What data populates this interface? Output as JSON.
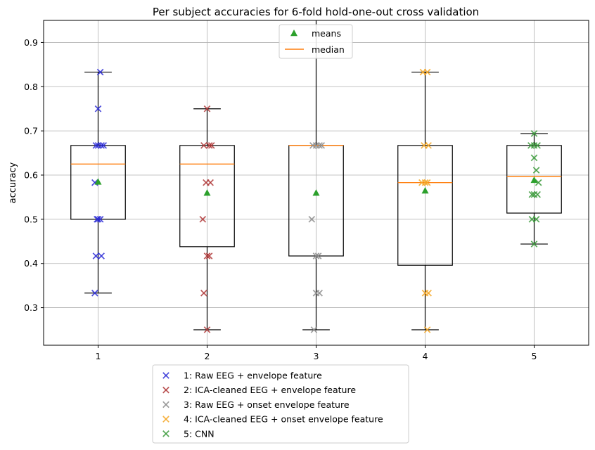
{
  "chart_data": {
    "type": "box",
    "title": "Per subject accuracies for 6-fold hold-one-out cross validation",
    "xlabel": "",
    "ylabel": "accuracy",
    "ylim": [
      0.215,
      0.95
    ],
    "xlim": [
      0.5,
      5.5
    ],
    "yticks": [
      0.3,
      0.4,
      0.5,
      0.6,
      0.7,
      0.8,
      0.9
    ],
    "ytick_labels": [
      "0.3",
      "0.4",
      "0.5",
      "0.6",
      "0.7",
      "0.8",
      "0.9"
    ],
    "categories": [
      "1",
      "2",
      "3",
      "4",
      "5"
    ],
    "grid": true,
    "top_legend": {
      "placement": "top-center",
      "entries": [
        {
          "label": "means",
          "marker": "triangle",
          "color": "#2ca02c"
        },
        {
          "label": "median",
          "marker": "line",
          "color": "#ff7f0e"
        }
      ]
    },
    "boxes": [
      {
        "q1": 0.5,
        "median": 0.625,
        "q3": 0.667,
        "whislo": 0.333,
        "whishi": 0.833,
        "mean": 0.585
      },
      {
        "q1": 0.438,
        "median": 0.625,
        "q3": 0.667,
        "whislo": 0.25,
        "whishi": 0.75,
        "mean": 0.56
      },
      {
        "q1": 0.417,
        "median": 0.667,
        "q3": 0.667,
        "whislo": 0.25,
        "whishi": 0.95,
        "mean": 0.56
      },
      {
        "q1": 0.396,
        "median": 0.583,
        "q3": 0.667,
        "whislo": 0.25,
        "whishi": 0.833,
        "mean": 0.565
      },
      {
        "q1": 0.514,
        "median": 0.597,
        "q3": 0.667,
        "whislo": 0.444,
        "whishi": 0.694,
        "mean": 0.589
      }
    ],
    "series": [
      {
        "name": "1: Raw EEG + envelope feature",
        "color": "#2b2bd6",
        "x": [
          1.02,
          1.0,
          0.98,
          1.0,
          1.03,
          1.05,
          0.97,
          1.0,
          1.02,
          0.99,
          1.03,
          0.98,
          0.97
        ],
        "y": [
          0.833,
          0.75,
          0.667,
          0.667,
          0.667,
          0.667,
          0.583,
          0.5,
          0.5,
          0.5,
          0.417,
          0.417,
          0.333
        ]
      },
      {
        "name": "2: ICA-cleaned EEG + envelope feature",
        "color": "#b03a3a",
        "x": [
          2.0,
          1.97,
          2.02,
          2.04,
          1.99,
          2.03,
          1.96,
          2.02,
          2.0,
          1.97,
          2.0
        ],
        "y": [
          0.75,
          0.667,
          0.667,
          0.667,
          0.583,
          0.583,
          0.5,
          0.417,
          0.417,
          0.333,
          0.25
        ]
      },
      {
        "name": "3: Raw EEG + onset envelope feature",
        "color": "#8c8c8c",
        "x": [
          2.97,
          3.0,
          3.03,
          3.05,
          2.96,
          3.0,
          3.02,
          3.0,
          3.03,
          2.98
        ],
        "y": [
          0.667,
          0.667,
          0.667,
          0.667,
          0.5,
          0.417,
          0.417,
          0.333,
          0.333,
          0.25
        ]
      },
      {
        "name": "4: ICA-cleaned EEG + onset envelope feature",
        "color": "#f5a623",
        "x": [
          3.98,
          4.02,
          3.99,
          4.03,
          3.97,
          4.0,
          4.02,
          4.0,
          4.03,
          4.02
        ],
        "y": [
          0.833,
          0.833,
          0.667,
          0.667,
          0.583,
          0.583,
          0.583,
          0.333,
          0.333,
          0.25
        ]
      },
      {
        "name": "5: CNN",
        "color": "#3a9a3a",
        "x": [
          5.0,
          4.97,
          5.0,
          5.03,
          5.0,
          5.02,
          5.04,
          4.98,
          5.0,
          5.03,
          4.98,
          5.02,
          5.0
        ],
        "y": [
          0.694,
          0.667,
          0.667,
          0.667,
          0.639,
          0.611,
          0.583,
          0.556,
          0.556,
          0.556,
          0.5,
          0.5,
          0.444
        ]
      }
    ],
    "bottom_legend": {
      "placement": "below-axes-left",
      "entries": [
        {
          "label": "1: Raw EEG + envelope feature",
          "color": "#2b2bd6"
        },
        {
          "label": "2: ICA-cleaned EEG + envelope feature",
          "color": "#b03a3a"
        },
        {
          "label": "3: Raw EEG + onset envelope feature",
          "color": "#8c8c8c"
        },
        {
          "label": "4: ICA-cleaned EEG + onset envelope feature",
          "color": "#f5a623"
        },
        {
          "label": "5: CNN",
          "color": "#3a9a3a"
        }
      ]
    },
    "colors": {
      "grid": "#b0b0b0",
      "box": "#000000",
      "median": "#ff7f0e",
      "mean": "#2ca02c"
    }
  }
}
